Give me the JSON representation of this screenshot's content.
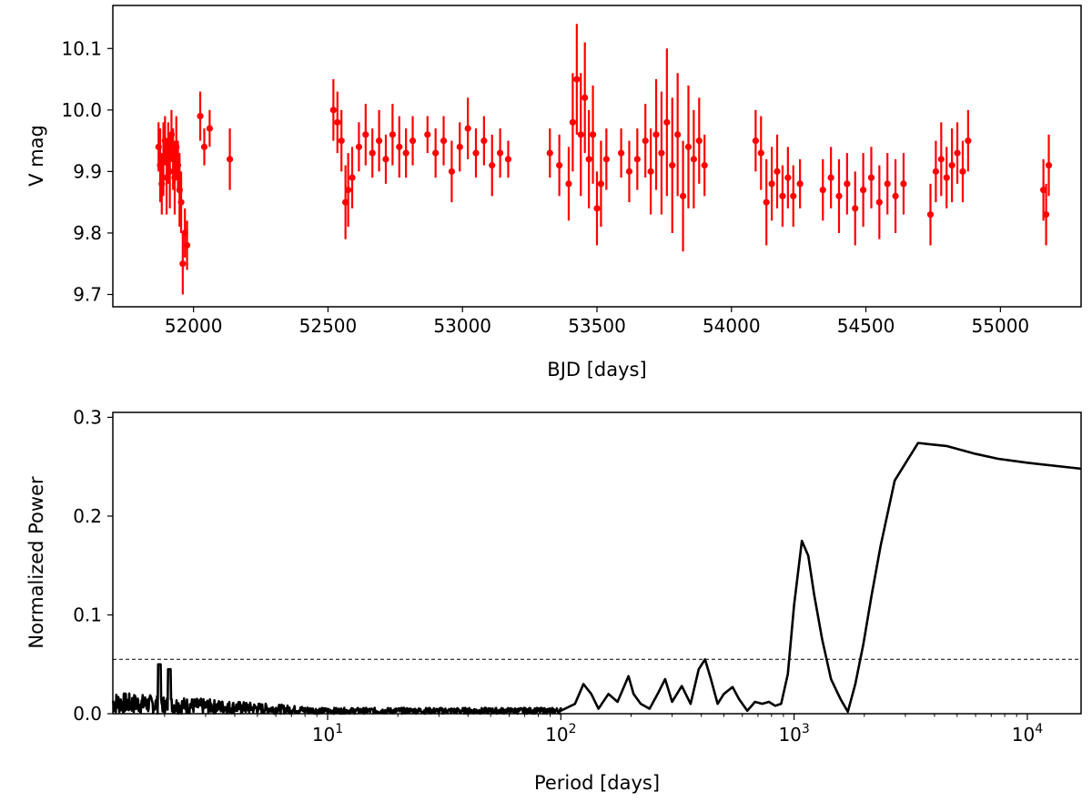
{
  "chart_data": [
    {
      "type": "scatter",
      "xlabel": "BJD [days]",
      "ylabel": "V mag",
      "xlim": [
        51700,
        55300
      ],
      "ylim": [
        9.68,
        10.17
      ],
      "x_ticks": [
        52000,
        52500,
        53000,
        53500,
        54000,
        54500,
        55000
      ],
      "x_tick_labels": [
        "52000",
        "52500",
        "53000",
        "53500",
        "54000",
        "54500",
        "55000"
      ],
      "y_ticks": [
        9.7,
        9.8,
        9.9,
        10.0,
        10.1
      ],
      "y_tick_labels": [
        "9.7",
        "9.8",
        "9.9",
        "10.0",
        "10.1"
      ],
      "grid": false,
      "color": "#ff0000",
      "error_bars": "vertical",
      "series": [
        {
          "x": [
            51870,
            51876,
            51882,
            51888,
            51894,
            51900,
            51906,
            51912,
            51918,
            51924,
            51930,
            51936,
            51942,
            51948,
            51954,
            51960,
            51968,
            51976,
            52025,
            52040,
            52060,
            52135,
            52520,
            52535,
            52550,
            52565,
            52575,
            52590,
            52615,
            52640,
            52665,
            52690,
            52715,
            52740,
            52765,
            52790,
            52815,
            52870,
            52900,
            52930,
            52960,
            52990,
            53020,
            53050,
            53080,
            53110,
            53140,
            53170,
            53325,
            53360,
            53395,
            53410,
            53425,
            53440,
            53455,
            53470,
            53485,
            53500,
            53515,
            53535,
            53590,
            53620,
            53650,
            53680,
            53700,
            53720,
            53740,
            53760,
            53780,
            53800,
            53820,
            53840,
            53860,
            53880,
            53900,
            54090,
            54110,
            54130,
            54150,
            54170,
            54190,
            54210,
            54230,
            54255,
            54340,
            54370,
            54400,
            54430,
            54460,
            54490,
            54520,
            54550,
            54580,
            54610,
            54640,
            54740,
            54760,
            54780,
            54800,
            54820,
            54840,
            54860,
            54880,
            55160,
            55170,
            55180
          ],
          "y": [
            9.94,
            9.91,
            9.88,
            9.92,
            9.95,
            9.89,
            9.93,
            9.9,
            9.96,
            9.92,
            9.89,
            9.94,
            9.91,
            9.87,
            9.85,
            9.75,
            9.8,
            9.78,
            9.99,
            9.94,
            9.97,
            9.92,
            10.0,
            9.98,
            9.95,
            9.85,
            9.87,
            9.89,
            9.94,
            9.96,
            9.93,
            9.95,
            9.92,
            9.96,
            9.94,
            9.93,
            9.95,
            9.96,
            9.93,
            9.95,
            9.9,
            9.94,
            9.97,
            9.93,
            9.95,
            9.91,
            9.93,
            9.92,
            9.93,
            9.91,
            9.88,
            9.98,
            10.05,
            9.96,
            10.02,
            9.92,
            9.96,
            9.84,
            9.88,
            9.92,
            9.93,
            9.9,
            9.92,
            9.95,
            9.9,
            9.96,
            9.93,
            9.98,
            9.91,
            9.96,
            9.86,
            9.94,
            9.92,
            9.95,
            9.91,
            9.95,
            9.93,
            9.85,
            9.88,
            9.9,
            9.86,
            9.89,
            9.86,
            9.88,
            9.87,
            9.89,
            9.86,
            9.88,
            9.84,
            9.87,
            9.89,
            9.85,
            9.88,
            9.86,
            9.88,
            9.83,
            9.9,
            9.92,
            9.89,
            9.91,
            9.93,
            9.9,
            9.95,
            9.87,
            9.83,
            9.91
          ],
          "yerr": [
            0.04,
            0.06,
            0.05,
            0.06,
            0.04,
            0.06,
            0.05,
            0.06,
            0.04,
            0.05,
            0.06,
            0.05,
            0.04,
            0.06,
            0.05,
            0.05,
            0.04,
            0.04,
            0.04,
            0.03,
            0.03,
            0.05,
            0.05,
            0.05,
            0.05,
            0.06,
            0.06,
            0.05,
            0.04,
            0.05,
            0.04,
            0.05,
            0.04,
            0.05,
            0.05,
            0.04,
            0.04,
            0.03,
            0.04,
            0.04,
            0.05,
            0.04,
            0.05,
            0.04,
            0.04,
            0.05,
            0.04,
            0.03,
            0.04,
            0.05,
            0.06,
            0.08,
            0.09,
            0.1,
            0.09,
            0.08,
            0.08,
            0.06,
            0.07,
            0.05,
            0.04,
            0.05,
            0.05,
            0.06,
            0.07,
            0.09,
            0.1,
            0.12,
            0.11,
            0.1,
            0.09,
            0.1,
            0.08,
            0.07,
            0.05,
            0.05,
            0.06,
            0.07,
            0.06,
            0.06,
            0.05,
            0.05,
            0.05,
            0.04,
            0.05,
            0.05,
            0.06,
            0.05,
            0.06,
            0.06,
            0.05,
            0.06,
            0.05,
            0.06,
            0.05,
            0.05,
            0.05,
            0.06,
            0.05,
            0.06,
            0.05,
            0.05,
            0.05,
            0.05,
            0.05,
            0.05
          ]
        }
      ]
    },
    {
      "type": "line",
      "xlabel": "Period [days]",
      "ylabel": "Normalized Power",
      "x_scale": "log",
      "xlim": [
        1.2,
        17000
      ],
      "ylim": [
        0.0,
        0.305
      ],
      "x_ticks": [
        10,
        100,
        1000,
        10000
      ],
      "x_tick_bases": [
        "10",
        "10",
        "10",
        "10"
      ],
      "x_tick_exponents": [
        "1",
        "2",
        "3",
        "4"
      ],
      "y_ticks": [
        0.0,
        0.1,
        0.2,
        0.3
      ],
      "y_tick_labels": [
        "0.0",
        "0.1",
        "0.2",
        "0.3"
      ],
      "grid": false,
      "color": "#000000",
      "threshold": {
        "y": 0.055,
        "style": "dashed",
        "color": "#000000"
      },
      "series": [
        {
          "x": [
            100,
            115,
            125,
            135,
            145,
            160,
            175,
            195,
            205,
            220,
            240,
            260,
            280,
            300,
            330,
            360,
            390,
            415,
            440,
            470,
            500,
            545,
            580,
            630,
            680,
            730,
            780,
            830,
            880,
            940,
            1000,
            1080,
            1150,
            1220,
            1320,
            1440,
            1580,
            1700,
            1830,
            1980,
            2150,
            2350,
            2700,
            3400,
            4500,
            6000,
            7500,
            10000,
            17000
          ],
          "y": [
            0.003,
            0.01,
            0.03,
            0.02,
            0.005,
            0.02,
            0.012,
            0.038,
            0.02,
            0.01,
            0.005,
            0.02,
            0.035,
            0.012,
            0.028,
            0.01,
            0.045,
            0.055,
            0.035,
            0.01,
            0.02,
            0.027,
            0.015,
            0.003,
            0.012,
            0.01,
            0.012,
            0.008,
            0.01,
            0.04,
            0.11,
            0.175,
            0.16,
            0.12,
            0.075,
            0.035,
            0.015,
            0.002,
            0.03,
            0.07,
            0.12,
            0.17,
            0.236,
            0.274,
            0.271,
            0.263,
            0.258,
            0.254,
            0.248
          ]
        }
      ]
    }
  ]
}
